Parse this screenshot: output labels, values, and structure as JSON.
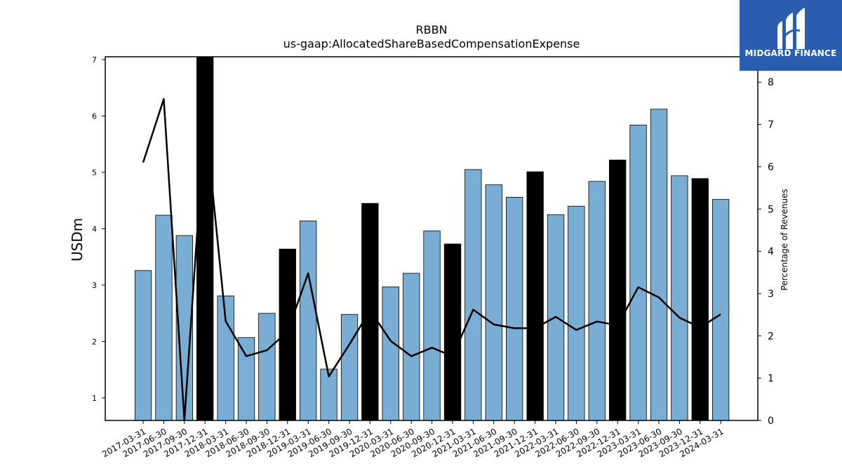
{
  "chart_data": {
    "type": "bar",
    "title": "RBBN",
    "subtitle": "us-gaap:AllocatedShareBasedCompensationExpense",
    "ylabel": "USDm",
    "y2label": "Percentage of Revenues",
    "ylim": [
      0.6,
      7.05
    ],
    "y2lim": [
      0,
      8.6
    ],
    "yticks": [
      1,
      2,
      3,
      4,
      5,
      6,
      7
    ],
    "y2ticks": [
      0,
      1,
      2,
      3,
      4,
      5,
      6,
      7,
      8
    ],
    "categories": [
      "2017-03-31",
      "2017-06-30",
      "2017-09-30",
      "2017-12-31",
      "2018-03-31",
      "2018-06-30",
      "2018-09-30",
      "2018-12-31",
      "2019-03-31",
      "2019-06-30",
      "2019-09-30",
      "2019-12-31",
      "2020-03-31",
      "2020-06-30",
      "2020-09-30",
      "2020-12-31",
      "2021-03-31",
      "2021-06-30",
      "2021-09-30",
      "2021-12-31",
      "2022-03-31",
      "2022-06-30",
      "2022-09-30",
      "2022-12-31",
      "2023-03-31",
      "2023-06-30",
      "2023-09-30",
      "2023-12-31",
      "2024-03-31"
    ],
    "values": [
      3.26,
      4.24,
      3.88,
      7.05,
      2.81,
      2.07,
      2.5,
      3.64,
      4.14,
      1.51,
      2.48,
      4.45,
      2.97,
      3.21,
      3.96,
      3.73,
      5.05,
      4.78,
      4.56,
      5.01,
      4.25,
      4.4,
      4.84,
      5.22,
      5.84,
      6.12,
      4.94,
      4.89,
      4.52
    ],
    "highlight": [
      false,
      false,
      false,
      true,
      false,
      false,
      false,
      true,
      false,
      false,
      false,
      true,
      false,
      false,
      false,
      true,
      false,
      false,
      false,
      true,
      false,
      false,
      false,
      true,
      false,
      false,
      false,
      true,
      false
    ],
    "line_values": [
      6.1,
      7.6,
      0.0,
      7.2,
      2.35,
      1.52,
      1.66,
      2.1,
      3.48,
      1.04,
      1.8,
      2.6,
      1.88,
      1.52,
      1.72,
      1.52,
      2.62,
      2.27,
      2.18,
      2.18,
      2.45,
      2.14,
      2.34,
      2.25,
      3.15,
      2.91,
      2.43,
      2.2,
      2.51
    ],
    "colors": {
      "bar": "#7aadd4",
      "highlight": "#000000",
      "line": "#000000"
    }
  },
  "logo": {
    "text": "MIDGARD FINANCE",
    "bg": "#2a5db0"
  }
}
